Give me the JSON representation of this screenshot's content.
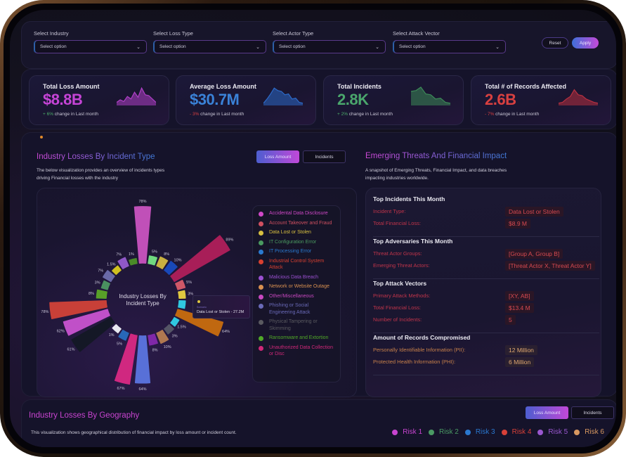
{
  "filters": [
    {
      "label": "Select Industry",
      "placeholder": "Select option"
    },
    {
      "label": "Select Loss Type",
      "placeholder": "Select option"
    },
    {
      "label": "Select Actor Type",
      "placeholder": "Select option"
    },
    {
      "label": "Select Attack Vector",
      "placeholder": "Select option"
    }
  ],
  "actions": {
    "reset": "Reset",
    "apply": "Apply"
  },
  "kpis": [
    {
      "title": "Total Loss Amount",
      "value": "$8.8B",
      "delta": "+ 6%",
      "delta_text": " change in Last month",
      "color": "#c544d6",
      "delta_color": "#4caf6a",
      "spark_color": "#b040c8",
      "spark": [
        0.1,
        0.25,
        0.15,
        0.45,
        0.3,
        0.7,
        0.4,
        0.95,
        0.55,
        0.5,
        0.3,
        0.1
      ]
    },
    {
      "title": "Average Loss Amount",
      "value": "$30.7M",
      "delta": "- 3%",
      "delta_text": " change in Last month",
      "color": "#3a82d8",
      "delta_color": "#d84040",
      "spark_color": "#2c6ac8",
      "spark": [
        0.05,
        0.3,
        0.6,
        0.95,
        0.8,
        0.75,
        0.55,
        0.6,
        0.3,
        0.35,
        0.1,
        0.05
      ]
    },
    {
      "title": "Total Incidents",
      "value": "2.8K",
      "delta": "+ 2%",
      "delta_text": " change in Last month",
      "color": "#4aa66c",
      "delta_color": "#4caf6a",
      "spark_color": "#3c8a58",
      "spark": [
        0.75,
        0.8,
        1.0,
        0.6,
        0.55,
        0.3,
        0.35,
        0.1,
        0.05
      ]
    },
    {
      "title": "Total # of Records Affected",
      "value": "2.6B",
      "delta": "- 7%",
      "delta_text": " change in Last month",
      "color": "#d84040",
      "delta_color": "#d84040",
      "spark_color": "#b83040",
      "spark": [
        0.05,
        0.1,
        0.3,
        0.45,
        0.85,
        0.55,
        0.5,
        0.3,
        0.2,
        0.1,
        0.05
      ]
    }
  ],
  "incident_section": {
    "title": "Industry Losses By Incident Type",
    "description_line1": "The below visualization provides an overview of incidents types",
    "description_line2": "driving Financial losses with the industry",
    "toggle_active": "Loss Amount",
    "toggle_inactive": "Incidents",
    "center_label_line1": "Industry Losses By",
    "center_label_line2": "Incident Type",
    "tooltip": {
      "series": "Scenario",
      "text": "Data Lost or Stolen - 27.2M"
    }
  },
  "chart_data": {
    "type": "radial-bar",
    "title": "Industry Losses By Incident Type",
    "unit": "%",
    "bars": [
      {
        "value": 78,
        "label": "78%",
        "color": "#c050b8"
      },
      {
        "value": 5,
        "label": "5%",
        "color": "#70d880"
      },
      {
        "value": 8,
        "label": "8%",
        "color": "#c8b040"
      },
      {
        "value": 10,
        "label": "10%",
        "color": "#1848b8"
      },
      {
        "value": 89,
        "label": "89%",
        "color": "#a81e58"
      },
      {
        "value": 5,
        "label": "5%",
        "color": "#d05868"
      },
      {
        "value": 3,
        "label": "3%",
        "color": "#e0c840"
      },
      {
        "value": 3,
        "label": "",
        "color": "#30c8e0"
      },
      {
        "value": 64,
        "label": "64%",
        "color": "#c06810"
      },
      {
        "value": 1.5,
        "label": "1.5%",
        "color": "#30c8e0"
      },
      {
        "value": 3,
        "label": "3%",
        "color": "#555566"
      },
      {
        "value": 10,
        "label": "10%",
        "color": "#b07850"
      },
      {
        "value": 8,
        "label": "8%",
        "color": "#8028a8"
      },
      {
        "value": 64,
        "label": "64%",
        "color": "#5870d8"
      },
      {
        "value": 67,
        "label": "67%",
        "color": "#d02880"
      },
      {
        "value": 5,
        "label": "5%",
        "color": "#2868b8"
      },
      {
        "value": 1,
        "label": "1%",
        "color": "#e8e8f0"
      },
      {
        "value": 61,
        "label": "61%",
        "color": "#141826"
      },
      {
        "value": 62,
        "label": "62%",
        "color": "#c050c8"
      },
      {
        "value": 78,
        "label": "78%",
        "color": "#c84038"
      },
      {
        "value": 8,
        "label": "8%",
        "color": "#58a028"
      },
      {
        "value": 3,
        "label": "3%",
        "color": "#4a9060"
      },
      {
        "value": 7,
        "label": "7%",
        "color": "#6a6aa8"
      },
      {
        "value": 1.5,
        "label": "1.5%",
        "color": "#d0c020"
      },
      {
        "value": 7,
        "label": "7%",
        "color": "#9058c8"
      },
      {
        "value": 1,
        "label": "1%",
        "color": "#4a8a28"
      }
    ]
  },
  "legend": [
    {
      "label": "Accidental Data Disclosure",
      "color": "#d048c8"
    },
    {
      "label": "Account Takeover and Fraud",
      "color": "#d05060"
    },
    {
      "label": "Data Lost or Stolen",
      "color": "#d8c040"
    },
    {
      "label": "IT Configuration Error",
      "color": "#4a9a60"
    },
    {
      "label": "IT Processing Error",
      "color": "#2a7ad0"
    },
    {
      "label": "Industrial Control System Attack",
      "color": "#d84030"
    },
    {
      "label": "Malicious Data Breach",
      "color": "#9a50d0"
    },
    {
      "label": "Network or Website Outage",
      "color": "#d89050"
    },
    {
      "label": "Other/Miscellaneous",
      "color": "#c848c0"
    },
    {
      "label": "Phishing or Social Engineering Attack",
      "color": "#6a6ab8"
    },
    {
      "label": "Physical Tampering or Skimming",
      "color": "#5a5a60"
    },
    {
      "label": "Ransomware and Extortion",
      "color": "#50a828"
    },
    {
      "label": "Unauthorized Data Collection or Disc",
      "color": "#d02878"
    }
  ],
  "threats": {
    "title": "Emerging Threats And Financial Impact",
    "description_line1": "A snapshot of Emerging Threats, Financial Impact, and data breaches",
    "description_line2": "impacting industries worldwide.",
    "groups": [
      {
        "title": "Top Incidents This Month",
        "rows": [
          {
            "label": "Incident Type:",
            "value": "Data Lost or Stolen"
          },
          {
            "label": "Total Financial Loss:",
            "value": "$8.9 M"
          }
        ]
      },
      {
        "title": "Top Adversaries This Month",
        "rows": [
          {
            "label": "Threat Actor Groups:",
            "value": "[Group A, Group B]"
          },
          {
            "label": "Emerging Threat Actors:",
            "value": "[Threat Actor X, Threat Actor Y]"
          }
        ]
      },
      {
        "title": "Top Attack Vectors",
        "rows": [
          {
            "label": "Primary Attack Methods:",
            "value": "[XY, AB]"
          },
          {
            "label": "Total Financial Loss:",
            "value": "$13.4 M"
          },
          {
            "label": "Number of Incidents:",
            "value": "5"
          }
        ]
      },
      {
        "title": "Amount of Records Compromised",
        "rows": [
          {
            "label": "Personally Identifiable Information (PII):",
            "value": "12 Million"
          },
          {
            "label": "Protected Health Information (PHI):",
            "value": "6 Million"
          }
        ]
      }
    ]
  },
  "geography": {
    "title": "Industry Losses By Geography",
    "description": "This visualization shows geographical distribution of financial impact by loss amount or incident count.",
    "toggle_active": "Loss Amount",
    "toggle_inactive": "Incidents",
    "risks": [
      {
        "label": "Risk 1",
        "color": "#c844d0"
      },
      {
        "label": "Risk 2",
        "color": "#4a9a64"
      },
      {
        "label": "Risk 3",
        "color": "#2a78d0"
      },
      {
        "label": "Risk 4",
        "color": "#d84038"
      },
      {
        "label": "Risk 5",
        "color": "#9a58d0"
      },
      {
        "label": "Risk 6",
        "color": "#d89860"
      }
    ]
  }
}
